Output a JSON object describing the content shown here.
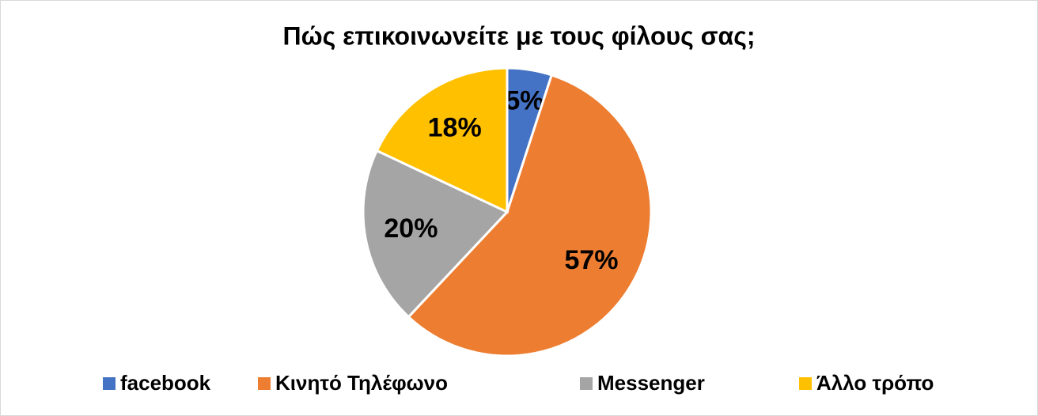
{
  "chart_data": {
    "type": "pie",
    "title": "Πώς επικοινωνείτε με τους φίλους σας;",
    "categories": [
      "facebook",
      "Κινητό Τηλέφωνο",
      "Messenger",
      "Άλλο τρόπο"
    ],
    "values": [
      5,
      57,
      20,
      18
    ],
    "value_labels": [
      "5%",
      "57%",
      "20%",
      "18%"
    ],
    "colors": [
      "#4472c4",
      "#ed7d31",
      "#a5a5a5",
      "#ffc000"
    ],
    "legend": "bottom"
  }
}
